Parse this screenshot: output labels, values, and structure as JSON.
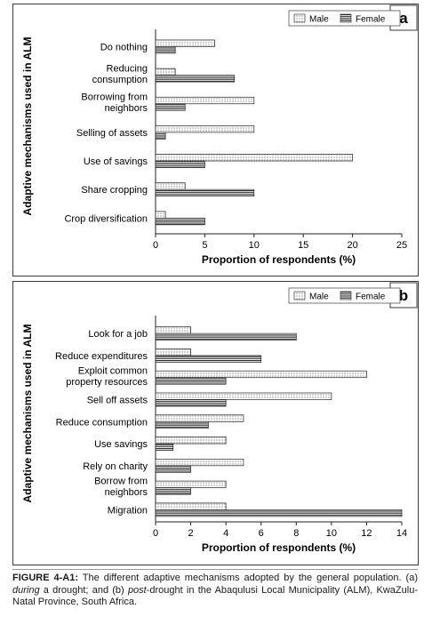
{
  "chart_data": [
    {
      "type": "bar",
      "orientation": "horizontal",
      "panel_label": "a",
      "ylabel": "Adaptive mechanisms used in ALM",
      "xlabel": "Proportion of respondents (%)",
      "xlim": [
        0,
        25
      ],
      "xticks": [
        "0",
        "5",
        "10",
        "15",
        "20",
        "25"
      ],
      "grid": false,
      "legend_position": "top-right",
      "categories": [
        "Do nothing",
        "Reducing consumption",
        "Borrowing from neighbors",
        "Selling of assets",
        "Use of savings",
        "Share cropping",
        "Crop diversification"
      ],
      "category_lines": [
        [
          "Do nothing"
        ],
        [
          "Reducing",
          "consumption"
        ],
        [
          "Borrowing from",
          "neighbors"
        ],
        [
          "Selling of assets"
        ],
        [
          "Use of savings"
        ],
        [
          "Share cropping"
        ],
        [
          "Crop diversification"
        ]
      ],
      "series": [
        {
          "name": "Male",
          "pattern": "dotted",
          "values": [
            6,
            2,
            10,
            10,
            20,
            3,
            1
          ]
        },
        {
          "name": "Female",
          "pattern": "horizontal-lines",
          "values": [
            2,
            8,
            3,
            1,
            5,
            10,
            5
          ]
        }
      ]
    },
    {
      "type": "bar",
      "orientation": "horizontal",
      "panel_label": "b",
      "ylabel": "Adaptive mechanisms used in ALM",
      "xlabel": "Proportion of respondents (%)",
      "xlim": [
        0,
        14
      ],
      "xticks": [
        "0",
        "2",
        "4",
        "6",
        "8",
        "10",
        "12",
        "14"
      ],
      "grid": false,
      "legend_position": "top-right",
      "categories": [
        "Look for a job",
        "Reduce expenditures",
        "Exploit common property resources",
        "Sell off assets",
        "Reduce consumption",
        "Use savings",
        "Rely on charity",
        "Borrow from neighbors",
        "Migration"
      ],
      "category_lines": [
        [
          "Look for a job"
        ],
        [
          "Reduce expenditures"
        ],
        [
          "Exploit common",
          "property resources"
        ],
        [
          "Sell off assets"
        ],
        [
          "Reduce consumption"
        ],
        [
          "Use savings"
        ],
        [
          "Rely on charity"
        ],
        [
          "Borrow from",
          "neighbors"
        ],
        [
          "Migration"
        ]
      ],
      "series": [
        {
          "name": "Male",
          "pattern": "dotted",
          "values": [
            2,
            2,
            12,
            10,
            5,
            4,
            5,
            4,
            4
          ]
        },
        {
          "name": "Female",
          "pattern": "horizontal-lines",
          "values": [
            8,
            6,
            4,
            4,
            3,
            1,
            2,
            2,
            14
          ]
        }
      ]
    }
  ],
  "caption": {
    "label": "FIGURE 4-A1:",
    "text_1": " The different adaptive mechanisms adopted by the general population. (a) ",
    "em_1": "during",
    "text_2": " a drought; and (b) ",
    "em_2": "post",
    "text_3": "-drought in the Abaqulusi Local Municipality (ALM), KwaZulu-Natal Province, South Africa."
  }
}
